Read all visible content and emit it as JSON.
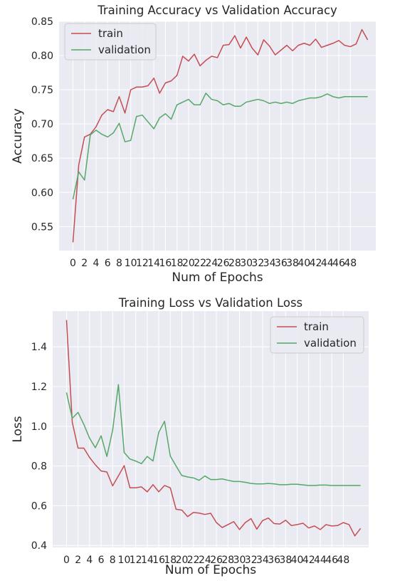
{
  "chart_data": [
    {
      "type": "line",
      "title": "Training Accuracy vs Validation Accuracy",
      "xlabel": "Num of Epochs",
      "ylabel": "Accuracy",
      "xticks": [
        0,
        2,
        4,
        6,
        8,
        10,
        12,
        14,
        16,
        18,
        20,
        22,
        24,
        26,
        28,
        30,
        32,
        34,
        36,
        38,
        40,
        42,
        44,
        46,
        48
      ],
      "yticks": [
        0.55,
        0.6,
        0.65,
        0.7,
        0.75,
        0.8,
        0.85
      ],
      "ytick_labels": [
        "0.55",
        "0.60",
        "0.65",
        "0.70",
        "0.75",
        "0.80",
        "0.85"
      ],
      "xlim": [
        -2.4,
        52.4
      ],
      "ylim": [
        0.515,
        0.85
      ],
      "grid": true,
      "legend_position": "top-left",
      "series": [
        {
          "name": "train",
          "color": "#c44e52",
          "values": [
            0.527,
            0.64,
            0.681,
            0.685,
            0.696,
            0.713,
            0.721,
            0.718,
            0.74,
            0.716,
            0.75,
            0.754,
            0.754,
            0.756,
            0.767,
            0.745,
            0.76,
            0.763,
            0.771,
            0.799,
            0.792,
            0.802,
            0.785,
            0.793,
            0.799,
            0.797,
            0.815,
            0.816,
            0.829,
            0.811,
            0.827,
            0.811,
            0.801,
            0.823,
            0.814,
            0.801,
            0.808,
            0.815,
            0.807,
            0.815,
            0.818,
            0.815,
            0.824,
            0.812,
            0.815,
            0.818,
            0.822,
            0.815,
            0.813,
            0.817,
            0.838,
            0.823
          ]
        },
        {
          "name": "validation",
          "color": "#55a868",
          "values": [
            0.59,
            0.63,
            0.618,
            0.684,
            0.691,
            0.685,
            0.681,
            0.687,
            0.701,
            0.674,
            0.676,
            0.711,
            0.713,
            0.703,
            0.693,
            0.709,
            0.715,
            0.707,
            0.728,
            0.732,
            0.736,
            0.728,
            0.728,
            0.745,
            0.736,
            0.734,
            0.728,
            0.73,
            0.726,
            0.726,
            0.732,
            0.734,
            0.736,
            0.734,
            0.73,
            0.732,
            0.73,
            0.732,
            0.73,
            0.734,
            0.736,
            0.738,
            0.738,
            0.74,
            0.744,
            0.74,
            0.738,
            0.74,
            0.74,
            0.74,
            0.74,
            0.74
          ]
        }
      ]
    },
    {
      "type": "line",
      "title": "Training Loss vs Validation Loss",
      "xlabel": "Num of Epochs",
      "ylabel": "Loss",
      "xticks": [
        0,
        2,
        4,
        6,
        8,
        10,
        12,
        14,
        16,
        18,
        20,
        22,
        24,
        26,
        28,
        30,
        32,
        34,
        36,
        38,
        40,
        42,
        44,
        46,
        48
      ],
      "yticks": [
        0.4,
        0.6,
        0.8,
        1.0,
        1.2,
        1.4
      ],
      "ytick_labels": [
        "0.4",
        "0.6",
        "0.8",
        "1.0",
        "1.2",
        "1.4"
      ],
      "xlim": [
        -2.4,
        52.4
      ],
      "ylim": [
        0.39,
        1.58
      ],
      "grid": true,
      "legend_position": "top-right",
      "series": [
        {
          "name": "train",
          "color": "#c44e52",
          "values": [
            1.535,
            1.02,
            0.89,
            0.89,
            0.843,
            0.806,
            0.775,
            0.77,
            0.7,
            0.75,
            0.802,
            0.69,
            0.69,
            0.695,
            0.67,
            0.706,
            0.67,
            0.702,
            0.69,
            0.582,
            0.578,
            0.545,
            0.566,
            0.563,
            0.556,
            0.562,
            0.515,
            0.49,
            0.505,
            0.52,
            0.48,
            0.515,
            0.535,
            0.482,
            0.525,
            0.538,
            0.51,
            0.508,
            0.527,
            0.5,
            0.505,
            0.512,
            0.488,
            0.498,
            0.48,
            0.505,
            0.498,
            0.5,
            0.515,
            0.505,
            0.448,
            0.486
          ]
        },
        {
          "name": "validation",
          "color": "#55a868",
          "values": [
            1.17,
            1.04,
            1.07,
            1.01,
            0.94,
            0.892,
            0.952,
            0.848,
            0.98,
            1.21,
            0.868,
            0.835,
            0.825,
            0.812,
            0.848,
            0.825,
            0.97,
            1.025,
            0.85,
            0.8,
            0.752,
            0.745,
            0.74,
            0.728,
            0.75,
            0.732,
            0.732,
            0.735,
            0.728,
            0.722,
            0.722,
            0.718,
            0.712,
            0.71,
            0.71,
            0.712,
            0.71,
            0.706,
            0.706,
            0.708,
            0.708,
            0.705,
            0.702,
            0.702,
            0.704,
            0.704,
            0.702,
            0.702,
            0.702,
            0.702,
            0.702,
            0.702
          ]
        }
      ]
    }
  ]
}
